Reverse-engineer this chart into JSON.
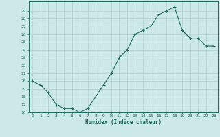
{
  "x": [
    0,
    1,
    2,
    3,
    4,
    5,
    6,
    7,
    8,
    9,
    10,
    11,
    12,
    13,
    14,
    15,
    16,
    17,
    18,
    19,
    20,
    21,
    22,
    23
  ],
  "y": [
    20,
    19.5,
    18.5,
    17,
    16.5,
    16.5,
    16,
    16.5,
    18,
    19.5,
    21,
    23,
    24,
    26,
    26.5,
    27,
    28.5,
    29,
    29.5,
    26.5,
    25.5,
    25.5,
    24.5,
    24.5
  ],
  "xlabel": "Humidex (Indice chaleur)",
  "ylabel": "",
  "xlim": [
    -0.5,
    23.5
  ],
  "ylim": [
    16,
    30
  ],
  "yticks": [
    16,
    17,
    18,
    19,
    20,
    21,
    22,
    23,
    24,
    25,
    26,
    27,
    28,
    29
  ],
  "xticks": [
    0,
    1,
    2,
    3,
    4,
    5,
    6,
    7,
    8,
    9,
    10,
    11,
    12,
    13,
    14,
    15,
    16,
    17,
    18,
    19,
    20,
    21,
    22,
    23
  ],
  "line_color": "#1a6b5a",
  "marker_color": "#1a6b5a",
  "bg_color": "#cce8e8",
  "grid_color": "#b0cfcf",
  "xlabel_color": "#1a6b5a",
  "tick_color": "#1a6b5a",
  "spine_color": "#1a6b5a"
}
